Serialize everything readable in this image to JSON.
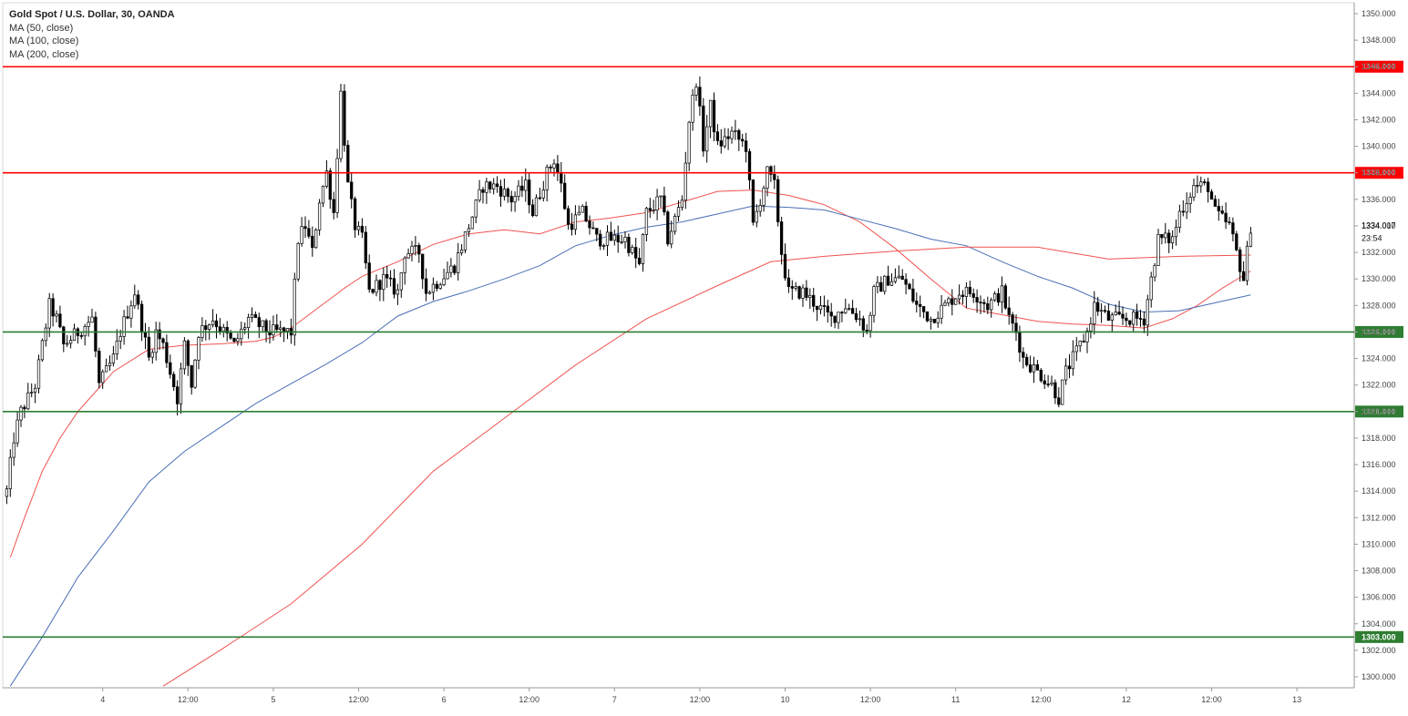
{
  "header": {
    "title": "Gold Spot / U.S. Dollar, 30, OANDA",
    "indicators": [
      "MA (50, close)",
      "MA (100, close)",
      "MA (200, close)"
    ]
  },
  "colors": {
    "resistance": "#ff0000",
    "support": "#2e7d32",
    "ma50": "#ef5350",
    "ma100": "#4a6fb5",
    "ma200": "#ef5350",
    "candle_up": "#ffffff",
    "candle_down": "#000000"
  },
  "current_price": {
    "label": "1334.017",
    "countdown": "23:54",
    "value": 1334.017
  },
  "chart_data": {
    "type": "candlestick",
    "title": "Gold Spot / U.S. Dollar, 30, OANDA",
    "ylim": [
      1299,
      1351
    ],
    "y_ticks": [
      "1350.000",
      "1348.000",
      "1346.000",
      "1344.000",
      "1342.000",
      "1340.000",
      "1338.000",
      "1336.000",
      "1334.000",
      "1332.000",
      "1330.000",
      "1328.000",
      "1326.000",
      "1324.000",
      "1322.000",
      "1320.000",
      "1318.000",
      "1316.000",
      "1314.000",
      "1312.000",
      "1310.000",
      "1308.000",
      "1306.000",
      "1304.000",
      "1302.000",
      "1300.000"
    ],
    "x_ticks": [
      {
        "label": "4",
        "i": 27
      },
      {
        "label": "12:00",
        "i": 51
      },
      {
        "label": "5",
        "i": 75
      },
      {
        "label": "12:00",
        "i": 99
      },
      {
        "label": "6",
        "i": 123
      },
      {
        "label": "12:00",
        "i": 147
      },
      {
        "label": "7",
        "i": 171
      },
      {
        "label": "12:00",
        "i": 195
      },
      {
        "label": "10",
        "i": 219
      },
      {
        "label": "12:00",
        "i": 243
      },
      {
        "label": "11",
        "i": 267
      },
      {
        "label": "12:00",
        "i": 291
      },
      {
        "label": "12",
        "i": 315
      },
      {
        "label": "12:00",
        "i": 339
      },
      {
        "label": "13",
        "i": 363
      }
    ],
    "horizontal_levels": [
      {
        "value": 1346,
        "label": "1346.000",
        "kind": "resistance"
      },
      {
        "value": 1338,
        "label": "1338.000",
        "kind": "resistance"
      },
      {
        "value": 1326,
        "label": "1326.000",
        "kind": "support"
      },
      {
        "value": 1320,
        "label": "1320.000",
        "kind": "support"
      },
      {
        "value": 1303,
        "label": "1303.000",
        "kind": "support"
      }
    ],
    "close_path": [
      [
        0,
        1314
      ],
      [
        2,
        1318
      ],
      [
        4,
        1320
      ],
      [
        8,
        1322
      ],
      [
        12,
        1328
      ],
      [
        14,
        1327
      ],
      [
        16,
        1325
      ],
      [
        20,
        1326
      ],
      [
        24,
        1327
      ],
      [
        26,
        1322
      ],
      [
        30,
        1324
      ],
      [
        32,
        1326
      ],
      [
        36,
        1329
      ],
      [
        40,
        1324
      ],
      [
        42,
        1326
      ],
      [
        44,
        1325
      ],
      [
        46,
        1323
      ],
      [
        48,
        1321
      ],
      [
        50,
        1325
      ],
      [
        52,
        1322
      ],
      [
        54,
        1326
      ],
      [
        58,
        1327
      ],
      [
        64,
        1325
      ],
      [
        68,
        1327
      ],
      [
        74,
        1326
      ],
      [
        80,
        1326
      ],
      [
        82,
        1333
      ],
      [
        84,
        1334
      ],
      [
        86,
        1332
      ],
      [
        88,
        1336
      ],
      [
        90,
        1338
      ],
      [
        92,
        1335
      ],
      [
        94,
        1344
      ],
      [
        96,
        1337
      ],
      [
        98,
        1334
      ],
      [
        100,
        1333
      ],
      [
        102,
        1329
      ],
      [
        106,
        1330
      ],
      [
        110,
        1329
      ],
      [
        112,
        1332
      ],
      [
        116,
        1332
      ],
      [
        118,
        1329
      ],
      [
        122,
        1330
      ],
      [
        126,
        1331
      ],
      [
        130,
        1334
      ],
      [
        134,
        1337
      ],
      [
        138,
        1337
      ],
      [
        142,
        1336
      ],
      [
        146,
        1337
      ],
      [
        148,
        1335
      ],
      [
        152,
        1338
      ],
      [
        154,
        1339
      ],
      [
        156,
        1337
      ],
      [
        158,
        1334
      ],
      [
        162,
        1335
      ],
      [
        166,
        1333
      ],
      [
        170,
        1333
      ],
      [
        174,
        1333
      ],
      [
        178,
        1331
      ],
      [
        180,
        1335
      ],
      [
        184,
        1336
      ],
      [
        186,
        1333
      ],
      [
        190,
        1336
      ],
      [
        192,
        1342
      ],
      [
        194,
        1345
      ],
      [
        196,
        1340
      ],
      [
        198,
        1343
      ],
      [
        200,
        1340
      ],
      [
        204,
        1341
      ],
      [
        208,
        1340
      ],
      [
        210,
        1334
      ],
      [
        212,
        1336
      ],
      [
        214,
        1338
      ],
      [
        216,
        1337
      ],
      [
        218,
        1332
      ],
      [
        220,
        1329
      ],
      [
        224,
        1329
      ],
      [
        228,
        1328
      ],
      [
        232,
        1327
      ],
      [
        236,
        1328
      ],
      [
        240,
        1327
      ],
      [
        242,
        1326
      ],
      [
        244,
        1329
      ],
      [
        248,
        1330
      ],
      [
        252,
        1330
      ],
      [
        256,
        1328
      ],
      [
        260,
        1327
      ],
      [
        264,
        1328
      ],
      [
        268,
        1329
      ],
      [
        272,
        1329
      ],
      [
        276,
        1328
      ],
      [
        280,
        1329
      ],
      [
        282,
        1327
      ],
      [
        284,
        1326
      ],
      [
        286,
        1324
      ],
      [
        290,
        1323
      ],
      [
        294,
        1322
      ],
      [
        296,
        1321
      ],
      [
        298,
        1323
      ],
      [
        302,
        1325
      ],
      [
        304,
        1326
      ],
      [
        306,
        1328
      ],
      [
        310,
        1327
      ],
      [
        314,
        1327
      ],
      [
        318,
        1327
      ],
      [
        320,
        1327
      ],
      [
        322,
        1330
      ],
      [
        324,
        1333
      ],
      [
        328,
        1333
      ],
      [
        330,
        1335
      ],
      [
        334,
        1337
      ],
      [
        338,
        1337
      ],
      [
        340,
        1335
      ],
      [
        344,
        1334
      ],
      [
        346,
        1332
      ],
      [
        348,
        1330
      ],
      [
        350,
        1334
      ]
    ],
    "ma_series": [
      {
        "name": "MA (50, close)",
        "color": "#ef5350",
        "points": [
          [
            1,
            1309
          ],
          [
            5,
            1312
          ],
          [
            10,
            1315.5
          ],
          [
            15,
            1318
          ],
          [
            20,
            1320
          ],
          [
            25,
            1321.5
          ],
          [
            30,
            1323
          ],
          [
            40,
            1324.7
          ],
          [
            50,
            1325
          ],
          [
            60,
            1325.1
          ],
          [
            70,
            1325.3
          ],
          [
            75,
            1325.6
          ],
          [
            80,
            1326.3
          ],
          [
            85,
            1327.3
          ],
          [
            90,
            1328.3
          ],
          [
            95,
            1329.3
          ],
          [
            100,
            1330.2
          ],
          [
            110,
            1331.3
          ],
          [
            120,
            1332.6
          ],
          [
            130,
            1333.4
          ],
          [
            140,
            1333.7
          ],
          [
            150,
            1333.4
          ],
          [
            160,
            1334.3
          ],
          [
            170,
            1334.6
          ],
          [
            180,
            1335
          ],
          [
            190,
            1335.8
          ],
          [
            200,
            1336.6
          ],
          [
            210,
            1336.7
          ],
          [
            220,
            1336.3
          ],
          [
            230,
            1335.6
          ],
          [
            240,
            1334.3
          ],
          [
            250,
            1332.3
          ],
          [
            260,
            1330
          ],
          [
            270,
            1327.8
          ],
          [
            280,
            1327.3
          ],
          [
            290,
            1326.8
          ],
          [
            300,
            1326.6
          ],
          [
            310,
            1326.5
          ],
          [
            320,
            1326.3
          ],
          [
            328,
            1327
          ],
          [
            335,
            1328
          ],
          [
            342,
            1329.3
          ],
          [
            350,
            1330.6
          ]
        ]
      },
      {
        "name": "MA (100, close)",
        "color": "#4a6fb5",
        "points": [
          [
            1,
            1299.3
          ],
          [
            10,
            1303
          ],
          [
            20,
            1307.5
          ],
          [
            30,
            1311
          ],
          [
            40,
            1314.7
          ],
          [
            50,
            1317
          ],
          [
            60,
            1318.8
          ],
          [
            70,
            1320.6
          ],
          [
            80,
            1322.1
          ],
          [
            90,
            1323.6
          ],
          [
            100,
            1325.2
          ],
          [
            110,
            1327.2
          ],
          [
            120,
            1328.3
          ],
          [
            130,
            1329.1
          ],
          [
            140,
            1330
          ],
          [
            150,
            1331
          ],
          [
            160,
            1332.5
          ],
          [
            170,
            1333.3
          ],
          [
            180,
            1333.9
          ],
          [
            190,
            1334.3
          ],
          [
            200,
            1334.9
          ],
          [
            210,
            1335.5
          ],
          [
            220,
            1335.4
          ],
          [
            230,
            1335.2
          ],
          [
            240,
            1334.5
          ],
          [
            250,
            1333.8
          ],
          [
            260,
            1333
          ],
          [
            270,
            1332.5
          ],
          [
            280,
            1331.3
          ],
          [
            290,
            1330.2
          ],
          [
            300,
            1329.3
          ],
          [
            310,
            1328.1
          ],
          [
            320,
            1327.5
          ],
          [
            330,
            1327.6
          ],
          [
            340,
            1328.2
          ],
          [
            350,
            1328.8
          ]
        ]
      },
      {
        "name": "MA (200, close)",
        "color": "#ef5350",
        "points": [
          [
            44,
            1299.3
          ],
          [
            60,
            1302
          ],
          [
            80,
            1305.5
          ],
          [
            100,
            1310
          ],
          [
            120,
            1315.5
          ],
          [
            140,
            1319.5
          ],
          [
            160,
            1323.5
          ],
          [
            180,
            1327
          ],
          [
            200,
            1329.5
          ],
          [
            215,
            1331.3
          ],
          [
            230,
            1331.7
          ],
          [
            250,
            1332.1
          ],
          [
            270,
            1332.4
          ],
          [
            290,
            1332.4
          ],
          [
            310,
            1331.5
          ],
          [
            330,
            1331.7
          ],
          [
            350,
            1331.8
          ]
        ]
      }
    ]
  }
}
